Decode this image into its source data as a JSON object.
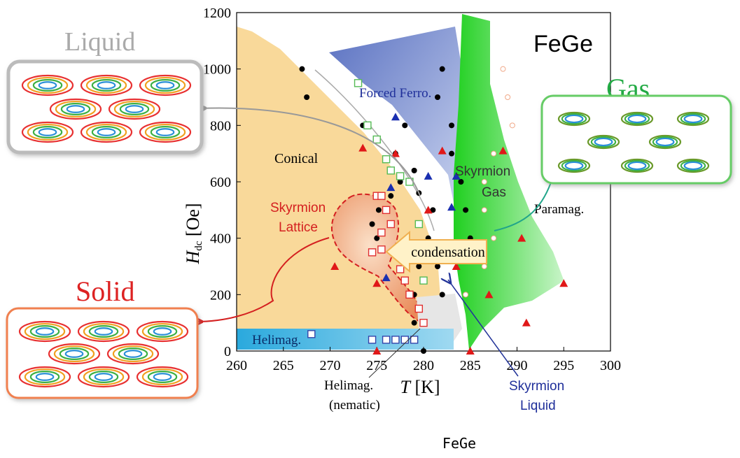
{
  "caption": "FeGe",
  "chart_data": {
    "type": "scatter",
    "title": "FeGe",
    "xlabel": "T [K]",
    "ylabel": "H_dc [Oe]",
    "ylabel_main": "H",
    "ylabel_sub": "dc",
    "ylabel_unit": "[Oe]",
    "xlabel_main": "T",
    "xlabel_unit": "[K]",
    "xlim": [
      260,
      300
    ],
    "ylim": [
      0,
      1200
    ],
    "xticks": [
      "260",
      "265",
      "270",
      "275",
      "280",
      "285",
      "290",
      "295",
      "300"
    ],
    "yticks": [
      "0",
      "200",
      "400",
      "600",
      "800",
      "1000",
      "1200"
    ],
    "phase_labels": {
      "forced_ferro": "Forced Ferro.",
      "conical": "Conical",
      "skyrmion_lattice_1": "Skyrmion",
      "skyrmion_lattice_2": "Lattice",
      "skyrmion_gas_1": "Skyrmion",
      "skyrmion_gas_2": "Gas",
      "paramag": "Paramag.",
      "helimag": "Helimag.",
      "helimag_nematic_1": "Helimag.",
      "helimag_nematic_2": "(nematic)",
      "skyrmion_liquid_1": "Skyrmion",
      "skyrmion_liquid_2": "Liquid",
      "condensation": "condensation"
    },
    "insets": {
      "liquid": "Liquid",
      "gas": "Gas",
      "solid": "Solid"
    },
    "colors": {
      "conical": "#f8d89a",
      "forced_ferro": "#6f86c9",
      "gas": "#38d838",
      "lattice": "#f0a070",
      "helimag": "#2aa9dd",
      "solid_frame": "#f08050",
      "liquid_frame": "#bbbbbb",
      "gas_frame": "#66cc66"
    },
    "series": [
      {
        "marker": "black-circle",
        "points": [
          [
            267,
            1000
          ],
          [
            267.5,
            900
          ],
          [
            273.5,
            800
          ],
          [
            274.5,
            450
          ],
          [
            275,
            400
          ],
          [
            275.2,
            500
          ],
          [
            276.5,
            550
          ],
          [
            277,
            700
          ],
          [
            277.5,
            600
          ],
          [
            278,
            800
          ],
          [
            279,
            640
          ],
          [
            279.5,
            560
          ],
          [
            279.5,
            300
          ],
          [
            279,
            200
          ],
          [
            279,
            100
          ],
          [
            280,
            0
          ],
          [
            280.5,
            400
          ],
          [
            281,
            500
          ],
          [
            281.5,
            300
          ],
          [
            282,
            200
          ],
          [
            281.5,
            900
          ],
          [
            282,
            1000
          ],
          [
            283,
            800
          ],
          [
            283,
            700
          ],
          [
            284,
            600
          ],
          [
            284.5,
            500
          ],
          [
            285,
            400
          ]
        ]
      },
      {
        "marker": "green-open-square",
        "points": [
          [
            273,
            950
          ],
          [
            274,
            800
          ],
          [
            275,
            750
          ],
          [
            276,
            680
          ],
          [
            276.5,
            640
          ],
          [
            277.5,
            620
          ],
          [
            278.5,
            600
          ],
          [
            279.5,
            450
          ],
          [
            280,
            250
          ]
        ]
      },
      {
        "marker": "red-open-square",
        "points": [
          [
            275,
            550
          ],
          [
            275.5,
            550
          ],
          [
            276,
            500
          ],
          [
            276.5,
            450
          ],
          [
            275.5,
            360
          ],
          [
            274.5,
            350
          ],
          [
            275.5,
            420
          ],
          [
            277.5,
            290
          ],
          [
            278,
            250
          ],
          [
            278.5,
            200
          ],
          [
            279.5,
            150
          ],
          [
            280,
            100
          ]
        ]
      },
      {
        "marker": "blue-open-square",
        "points": [
          [
            268,
            60
          ],
          [
            274.5,
            40
          ],
          [
            276,
            40
          ],
          [
            277,
            40
          ],
          [
            278,
            40
          ],
          [
            279,
            40
          ]
        ]
      },
      {
        "marker": "red-triangle",
        "points": [
          [
            273.5,
            720
          ],
          [
            277,
            700
          ],
          [
            282,
            710
          ],
          [
            280.5,
            500
          ],
          [
            270.5,
            300
          ],
          [
            275,
            240
          ],
          [
            283.5,
            300
          ],
          [
            288.5,
            710
          ],
          [
            290.5,
            400
          ],
          [
            291,
            100
          ],
          [
            295,
            240
          ],
          [
            285,
            0
          ],
          [
            275,
            0
          ],
          [
            287,
            200
          ]
        ]
      },
      {
        "marker": "blue-triangle",
        "points": [
          [
            277,
            830
          ],
          [
            276.5,
            580
          ],
          [
            280.5,
            620
          ],
          [
            283.5,
            620
          ],
          [
            283,
            510
          ],
          [
            276,
            260
          ],
          [
            281.5,
            350
          ]
        ]
      },
      {
        "marker": "open-circle",
        "points": [
          [
            288.5,
            1000
          ],
          [
            289,
            900
          ],
          [
            289.5,
            800
          ],
          [
            287.5,
            700
          ],
          [
            286.5,
            600
          ],
          [
            286.5,
            500
          ],
          [
            287.5,
            400
          ],
          [
            286.5,
            300
          ],
          [
            284.5,
            200
          ]
        ]
      }
    ]
  }
}
